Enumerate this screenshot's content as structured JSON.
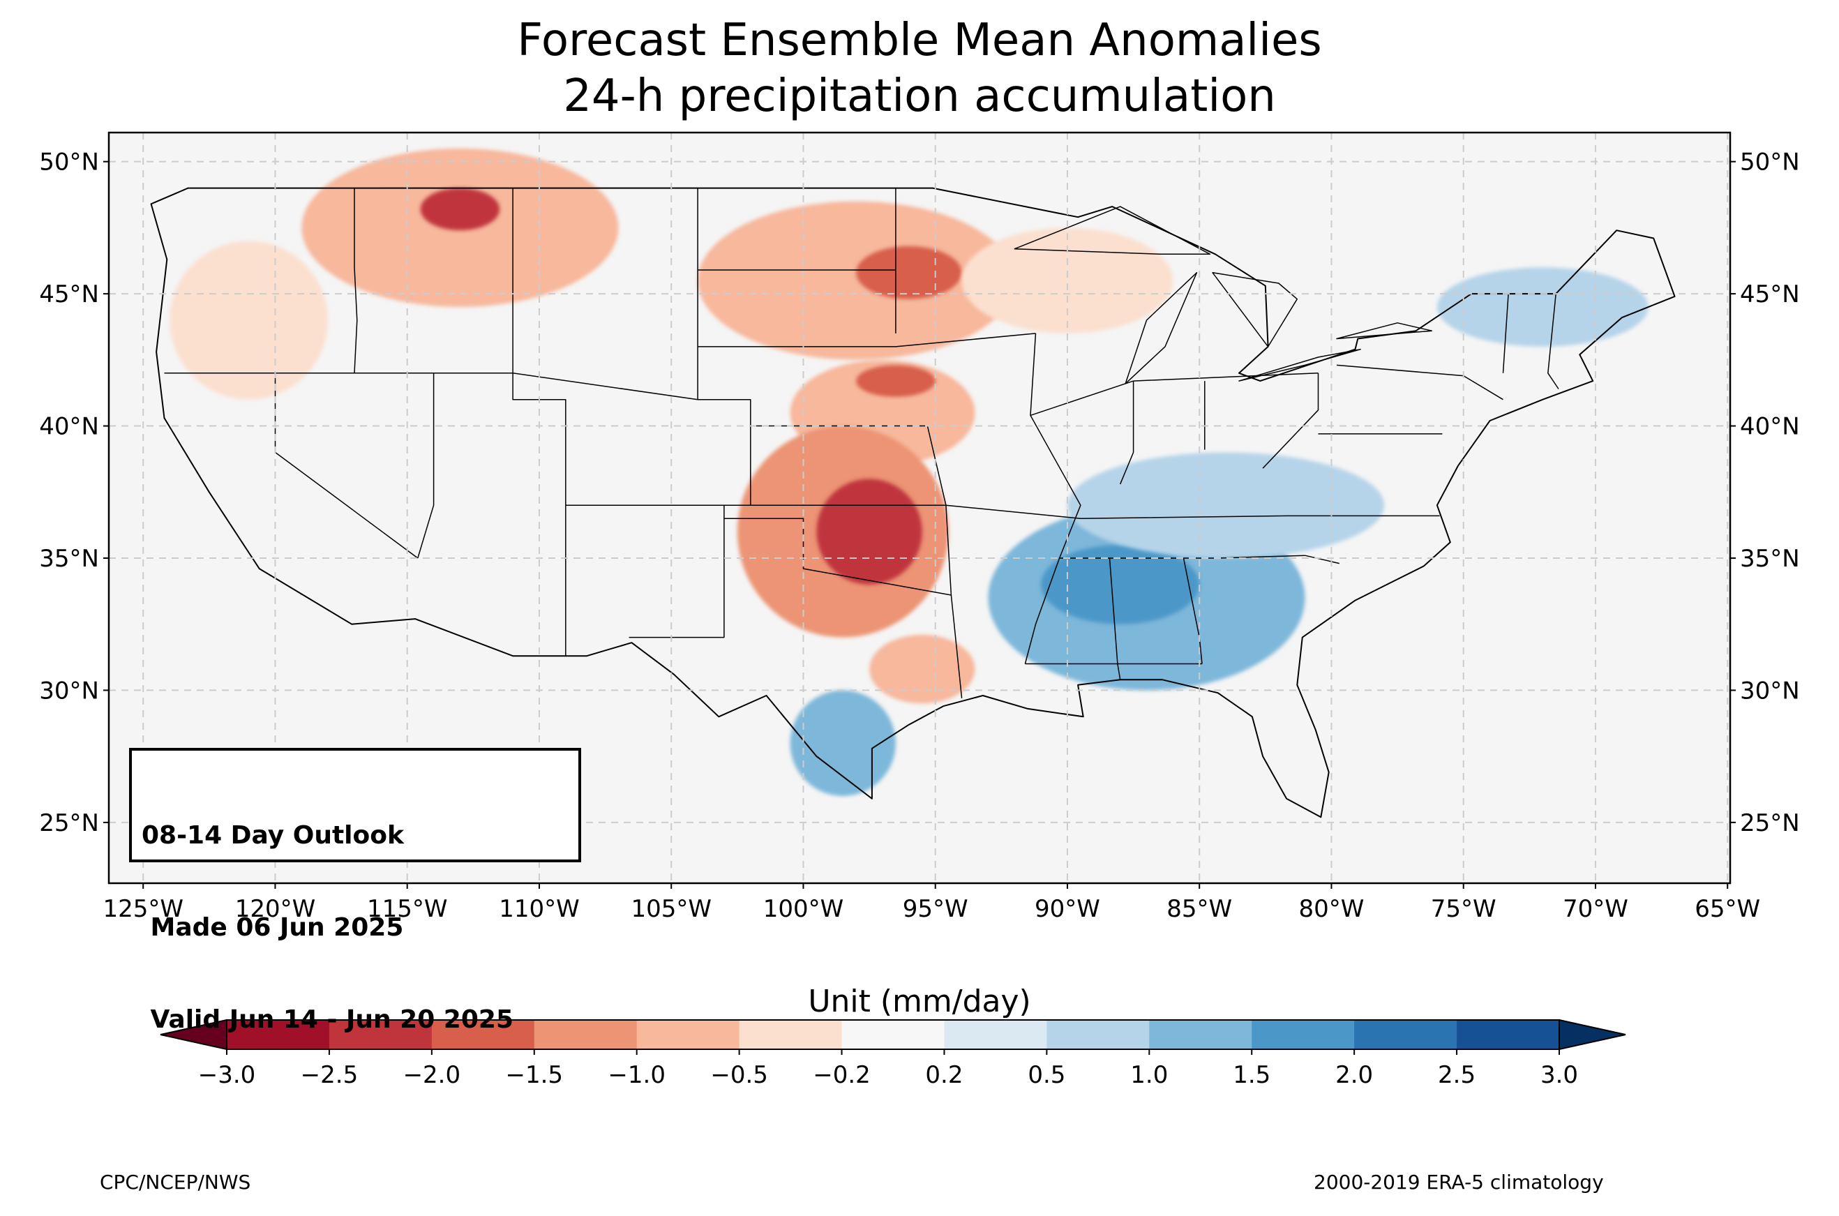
{
  "title": {
    "line1": "Forecast Ensemble Mean Anomalies",
    "line2": "24-h precipitation accumulation"
  },
  "map": {
    "projection": "PlateCarree",
    "lon_range": [
      -126.3,
      -64.9
    ],
    "lat_range": [
      22.7,
      51.1
    ],
    "gridlines": "dashed",
    "lat_ticks": [
      {
        "value": 50,
        "label": "50°N"
      },
      {
        "value": 45,
        "label": "45°N"
      },
      {
        "value": 40,
        "label": "40°N"
      },
      {
        "value": 35,
        "label": "35°N"
      },
      {
        "value": 30,
        "label": "30°N"
      },
      {
        "value": 25,
        "label": "25°N"
      }
    ],
    "lon_ticks": [
      {
        "value": -125,
        "label": "125°W"
      },
      {
        "value": -120,
        "label": "120°W"
      },
      {
        "value": -115,
        "label": "115°W"
      },
      {
        "value": -110,
        "label": "110°W"
      },
      {
        "value": -105,
        "label": "105°W"
      },
      {
        "value": -100,
        "label": "100°W"
      },
      {
        "value": -95,
        "label": "95°W"
      },
      {
        "value": -90,
        "label": "90°W"
      },
      {
        "value": -85,
        "label": "85°W"
      },
      {
        "value": -80,
        "label": "80°W"
      },
      {
        "value": -75,
        "label": "75°W"
      },
      {
        "value": -70,
        "label": "70°W"
      },
      {
        "value": -65,
        "label": "65°W"
      }
    ],
    "background_color": "#f5f5f5",
    "anomaly_regions": [
      {
        "name": "northern-rockies-dry",
        "center": [
          -113,
          47.5
        ],
        "radius": [
          6,
          3
        ],
        "value": -1.0
      },
      {
        "name": "montana-core-dry",
        "center": [
          -113,
          48.2
        ],
        "radius": [
          1.5,
          0.8
        ],
        "value": -2.5
      },
      {
        "name": "pacific-nw-dry",
        "center": [
          -121,
          44
        ],
        "radius": [
          3,
          3
        ],
        "value": -0.5
      },
      {
        "name": "northern-plains-dry",
        "center": [
          -98,
          45.5
        ],
        "radius": [
          6,
          3
        ],
        "value": -1.0
      },
      {
        "name": "dakotas-core-dry",
        "center": [
          -96,
          45.8
        ],
        "radius": [
          2,
          1
        ],
        "value": -2.0
      },
      {
        "name": "great-lakes-west-dry",
        "center": [
          -90,
          45.5
        ],
        "radius": [
          4,
          2
        ],
        "value": -0.5
      },
      {
        "name": "central-plains-dry",
        "center": [
          -97,
          40.5
        ],
        "radius": [
          3.5,
          2
        ],
        "value": -1.0
      },
      {
        "name": "nebraska-core-dry",
        "center": [
          -96.5,
          41.7
        ],
        "radius": [
          1.5,
          0.6
        ],
        "value": -2.0
      },
      {
        "name": "southern-plains-dry",
        "center": [
          -98.5,
          36
        ],
        "radius": [
          4,
          4
        ],
        "value": -1.5
      },
      {
        "name": "oklahoma-core-dry",
        "center": [
          -97.5,
          36
        ],
        "radius": [
          2,
          2
        ],
        "value": -2.5
      },
      {
        "name": "east-texas-dry",
        "center": [
          -95.5,
          30.8
        ],
        "radius": [
          2,
          1.3
        ],
        "value": -1.0
      },
      {
        "name": "southeast-wet",
        "center": [
          -87,
          33.5
        ],
        "radius": [
          6,
          3.5
        ],
        "value": 1.0
      },
      {
        "name": "deep-south-core-wet",
        "center": [
          -88,
          34
        ],
        "radius": [
          3,
          1.5
        ],
        "value": 1.5
      },
      {
        "name": "ohio-valley-wet",
        "center": [
          -84,
          37
        ],
        "radius": [
          6,
          2
        ],
        "value": 0.5
      },
      {
        "name": "south-texas-wet",
        "center": [
          -98.5,
          28
        ],
        "radius": [
          2,
          2
        ],
        "value": 1.0
      },
      {
        "name": "northeast-wet",
        "center": [
          -72,
          44.5
        ],
        "radius": [
          4,
          1.5
        ],
        "value": 0.5
      }
    ]
  },
  "outlook_box": {
    "line1": "08-14 Day Outlook",
    "line2": " Made 06 Jun 2025",
    "line3": " Valid Jun 14 - Jun 20 2025"
  },
  "colorbar": {
    "title": "Unit (mm/day)",
    "extend": "both",
    "ticks": [
      "−3.0",
      "−2.5",
      "−2.0",
      "−1.5",
      "−1.0",
      "−0.5",
      "−0.2",
      "0.2",
      "0.5",
      "1.0",
      "1.5",
      "2.0",
      "2.5",
      "3.0"
    ],
    "colors": [
      "#67001f",
      "#a01028",
      "#c0343c",
      "#d75f4c",
      "#ec9474",
      "#f7b89c",
      "#fbe0d0",
      "#f7f7f7",
      "#dbe9f3",
      "#b5d4e9",
      "#7db7da",
      "#4b98c8",
      "#2c73b2",
      "#165195",
      "#053061"
    ]
  },
  "footer": {
    "left": "CPC/NCEP/NWS",
    "right": "2000-2019 ERA-5 climatology"
  }
}
